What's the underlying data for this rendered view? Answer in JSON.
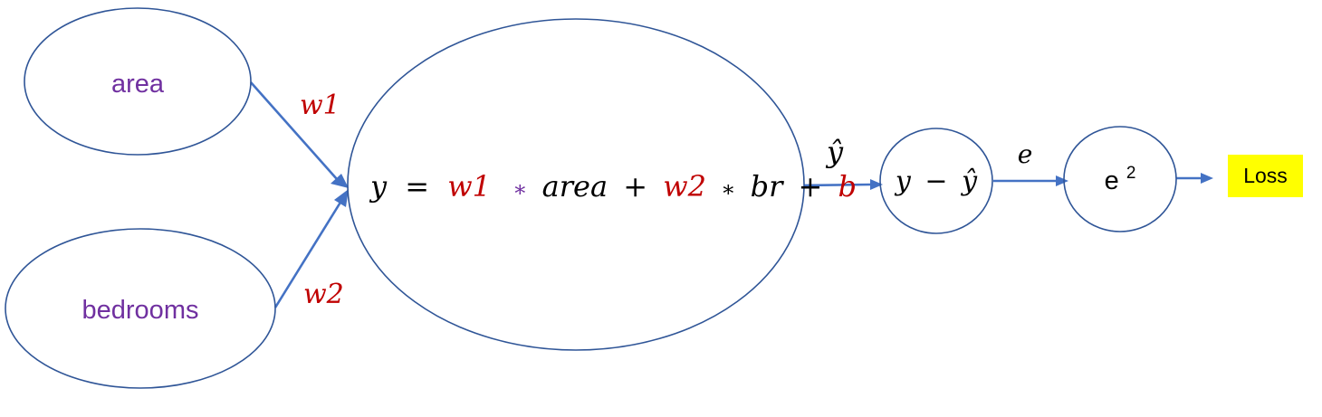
{
  "inputs": {
    "area": "area",
    "bedrooms": "bedrooms"
  },
  "weights": {
    "w1": "w1",
    "w2": "w2"
  },
  "equation": {
    "y": "y",
    "equals": "=",
    "w1": "w1",
    "times1": "∗",
    "area": "area",
    "plus1": "+",
    "w2": "w2",
    "times2": "∗",
    "br": "br",
    "plus2": "+",
    "b": "b"
  },
  "edges": {
    "y_hat": "ŷ",
    "e": "e"
  },
  "error_node": {
    "y": "y",
    "minus": "−",
    "y_hat": "ŷ"
  },
  "square_node": {
    "base": "e",
    "exponent": "2"
  },
  "output": {
    "loss": "Loss"
  },
  "colors": {
    "node_stroke": "#2f5597",
    "edge": "#4472c4",
    "input_text": "#7030a0",
    "weight_text": "#c00000",
    "math_text": "#000000",
    "loss_background": "#ffff00"
  }
}
